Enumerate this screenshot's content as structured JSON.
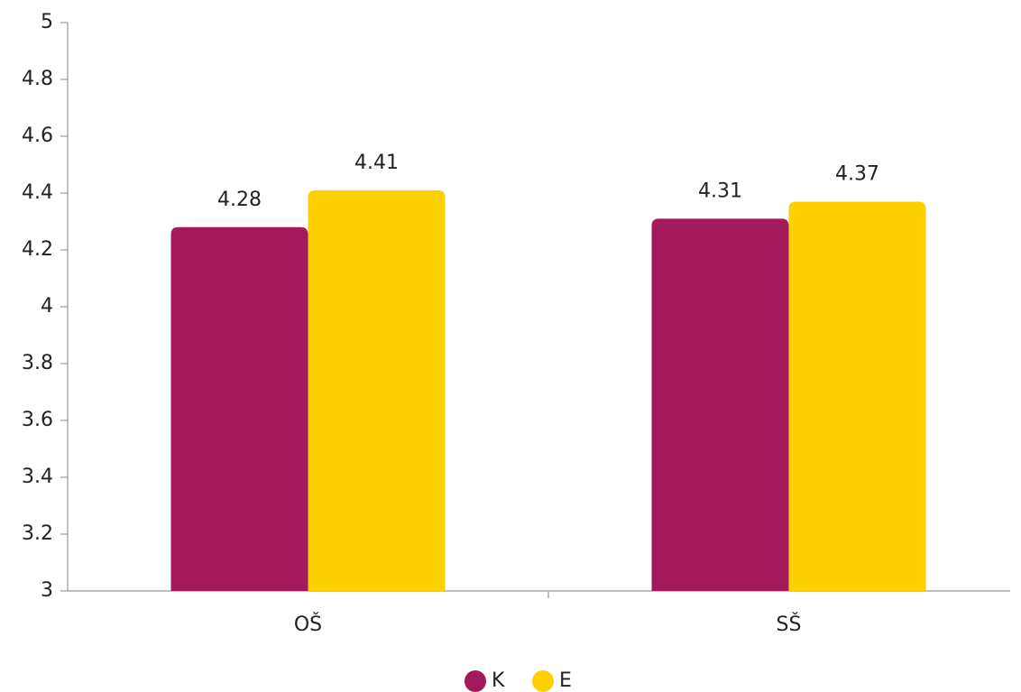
{
  "chart_data": {
    "type": "bar",
    "categories": [
      "OŠ",
      "SŠ"
    ],
    "series": [
      {
        "name": "K",
        "color": "#a31a5a",
        "values": [
          4.28,
          4.31
        ]
      },
      {
        "name": "E",
        "color": "#fdd000",
        "values": [
          4.41,
          4.37
        ]
      }
    ],
    "ylim": [
      3,
      5
    ],
    "yticks": [
      3,
      3.2,
      3.4,
      3.6,
      3.8,
      4,
      4.2,
      4.4,
      4.6,
      4.8,
      5
    ],
    "grid": false,
    "legend": "bottom"
  }
}
